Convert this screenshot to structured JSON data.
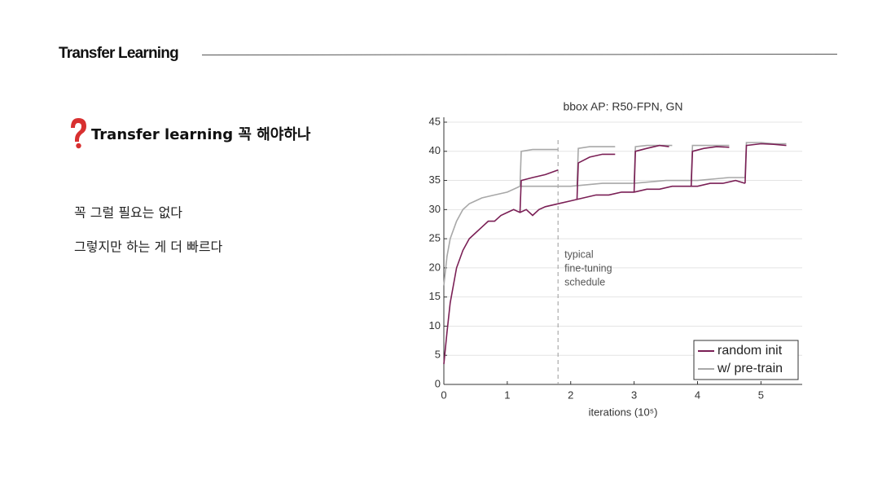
{
  "header": {
    "title": "Transfer Learning"
  },
  "heading": "Transfer learning 꼭 해야하나",
  "body": [
    "꼭 그럴 필요는 없다",
    "그렇지만 하는 게 더 빠르다"
  ],
  "chart_data": {
    "type": "line",
    "title": "bbox AP: R50-FPN, GN",
    "xlabel": "iterations (10⁵)",
    "xlim": [
      0,
      5.65
    ],
    "xticks": [
      0,
      1,
      2,
      3,
      4,
      5
    ],
    "ylim": [
      0,
      45
    ],
    "yticks": [
      0,
      5,
      10,
      15,
      20,
      25,
      30,
      35,
      40,
      45
    ],
    "grid": true,
    "legend": "lower right",
    "annotation": {
      "x": 1.8,
      "lines": [
        "typical",
        "fine-tuning",
        "schedule"
      ]
    },
    "series": [
      {
        "name": "random init",
        "color": "#7a1f55",
        "x": [
          0,
          0.05,
          0.1,
          0.15,
          0.2,
          0.3,
          0.4,
          0.5,
          0.6,
          0.7,
          0.8,
          0.9,
          1.0,
          1.1,
          1.2,
          1.3,
          1.4,
          1.5,
          1.6,
          1.8,
          2.0,
          2.2,
          2.4,
          2.6,
          2.8,
          3.0,
          3.2,
          3.4,
          3.6,
          3.8,
          4.0,
          4.2,
          4.4,
          4.6,
          4.75,
          null,
          1.2,
          1.22,
          1.4,
          1.6,
          1.8,
          null,
          2.1,
          2.12,
          2.3,
          2.5,
          2.7,
          null,
          3.0,
          3.02,
          3.2,
          3.4,
          3.55,
          null,
          3.9,
          3.92,
          4.1,
          4.3,
          4.5,
          null,
          4.75,
          4.77,
          5.0,
          5.2,
          5.4
        ],
        "values": [
          3.5,
          9,
          14,
          17,
          20,
          23,
          25,
          26,
          27,
          28,
          28,
          29,
          29.5,
          30,
          29.5,
          30,
          29,
          30,
          30.5,
          31,
          31.5,
          32,
          32.5,
          32.5,
          33,
          33,
          33.5,
          33.5,
          34,
          34,
          34,
          34.5,
          34.5,
          35,
          34.5,
          null,
          29.5,
          35,
          35.5,
          36,
          36.8,
          null,
          31.8,
          38,
          39,
          39.5,
          39.5,
          null,
          33,
          40,
          40.5,
          41,
          40.8,
          null,
          34,
          40,
          40.5,
          40.8,
          40.7,
          null,
          34.5,
          41,
          41.3,
          41.2,
          41
        ]
      },
      {
        "name": "w/ pre-train",
        "color": "#a8a8a8",
        "x": [
          0,
          0.05,
          0.1,
          0.2,
          0.3,
          0.4,
          0.5,
          0.6,
          0.8,
          1.0,
          1.2,
          1.4,
          1.6,
          1.8,
          2.0,
          2.5,
          3.0,
          3.5,
          4.0,
          4.5,
          4.75,
          null,
          1.2,
          1.22,
          1.4,
          1.6,
          1.8,
          null,
          2.1,
          2.12,
          2.3,
          2.5,
          2.7,
          null,
          3.0,
          3.02,
          3.2,
          3.4,
          3.6,
          null,
          3.9,
          3.92,
          4.1,
          4.3,
          4.5,
          null,
          4.75,
          4.77,
          5.0,
          5.2,
          5.4
        ],
        "values": [
          17,
          22,
          25,
          28,
          30,
          31,
          31.5,
          32,
          32.5,
          33,
          34,
          34,
          34,
          34,
          34,
          34.5,
          34.5,
          35,
          35,
          35.5,
          35.5,
          null,
          34,
          40,
          40.3,
          40.3,
          40.3,
          null,
          34.2,
          40.5,
          40.8,
          40.8,
          40.8,
          null,
          34.5,
          40.8,
          41,
          41,
          41,
          null,
          35,
          41,
          41,
          41,
          41,
          null,
          35.5,
          41.5,
          41.5,
          41.3,
          41.3
        ]
      }
    ]
  }
}
